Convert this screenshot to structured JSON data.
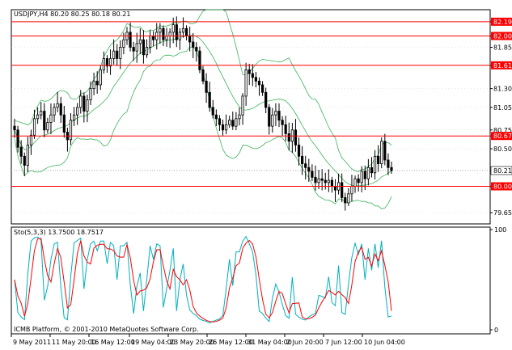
{
  "chart_data": [
    {
      "type": "candlestick",
      "title": "USDJPY,H4  80.20 80.25 80.18 80.21",
      "symbol": "USDJPY",
      "timeframe": "H4",
      "ohlc_header": {
        "open": 80.2,
        "high": 80.25,
        "low": 80.18,
        "close": 80.21
      },
      "ylim": [
        79.5,
        82.35
      ],
      "y_ticks": [
        "82.19",
        "82.00",
        "81.85",
        "81.61",
        "81.30",
        "81.05",
        "80.75",
        "80.67",
        "80.50",
        "80.21",
        "80.00",
        "79.65"
      ],
      "horizontal_lines": [
        {
          "value": 82.19,
          "label": "82.19"
        },
        {
          "value": 82.0,
          "label": "82.00"
        },
        {
          "value": 81.61,
          "label": "81.61"
        },
        {
          "value": 80.67,
          "label": "80.67"
        },
        {
          "value": 80.0,
          "label": "80.00"
        }
      ],
      "current_price": 80.21,
      "close_series": [
        80.75,
        80.52,
        80.4,
        80.28,
        80.55,
        80.68,
        80.9,
        80.95,
        81.0,
        80.75,
        80.85,
        80.95,
        81.05,
        81.1,
        80.95,
        80.72,
        80.62,
        80.88,
        80.95,
        81.05,
        81.2,
        81.0,
        81.15,
        81.3,
        81.4,
        81.35,
        81.55,
        81.7,
        81.6,
        81.7,
        81.8,
        81.7,
        81.85,
        81.95,
        82.05,
        81.85,
        81.8,
        81.9,
        81.95,
        81.75,
        81.85,
        82.0,
        81.95,
        82.05,
        82.1,
        81.95,
        82.0,
        82.05,
        82.15,
        81.95,
        82.05,
        82.1,
        82.0,
        81.92,
        81.85,
        81.8,
        81.55,
        81.4,
        81.25,
        81.05,
        80.95,
        80.9,
        80.82,
        80.75,
        80.82,
        80.88,
        80.8,
        80.9,
        80.95,
        81.2,
        81.55,
        81.5,
        81.45,
        81.4,
        81.35,
        81.25,
        81.05,
        80.8,
        80.95,
        81.0,
        80.88,
        80.82,
        80.7,
        80.6,
        80.75,
        80.55,
        80.4,
        80.3,
        80.25,
        80.2,
        80.12,
        80.05,
        80.1,
        80.08,
        80.05,
        80.08,
        80.0,
        79.95,
        80.05,
        79.85,
        79.78,
        79.9,
        80.0,
        80.1,
        80.05,
        80.2,
        80.1,
        80.25,
        80.18,
        80.4,
        80.3,
        80.6,
        80.35,
        80.25,
        80.21
      ],
      "indicators": [
        "Bollinger Bands"
      ]
    },
    {
      "type": "line",
      "title": "Sto(5,3,3) 13.7500 18.7517",
      "indicator": "Stochastic",
      "parameters": "5,3,3",
      "values": {
        "main": 13.75,
        "signal": 18.7517
      },
      "ylim": [
        0,
        100
      ],
      "y_ticks": [
        "100",
        "0"
      ],
      "series": [
        {
          "color": "#00b0c0"
        },
        {
          "color": "#ff0000"
        }
      ]
    }
  ],
  "x_ticks": [
    "9 May 2011",
    "11 May 20:00",
    "16 May 12:00",
    "19 May 04:00",
    "23 May 20:00",
    "26 May 12:00",
    "31 May 04:00",
    "2 Jun 20:00",
    "7 Jun 12:00",
    "10 Jun 04:00"
  ],
  "footer": "ICMB Platform, © 2001-2010 MetaQuotes Software Corp.",
  "colors": {
    "hline": "#ff0000",
    "bands": "#3cb35a",
    "candle": "#000000",
    "axis": "#000000",
    "grid": "#000000",
    "label_bg": "#ff0000",
    "stoch_main": "#00b0c0",
    "stoch_signal": "#ff0000"
  }
}
